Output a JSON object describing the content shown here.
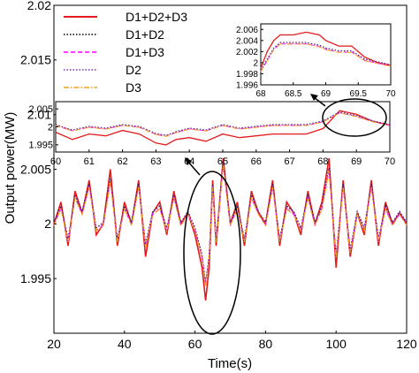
{
  "chart_data": [
    {
      "type": "line",
      "xlabel": "Time(s)",
      "ylabel": "Output power(MW)",
      "xlim": [
        20,
        120
      ],
      "ylim": [
        1.99,
        2.02
      ],
      "xticks": [
        "20",
        "40",
        "60",
        "80",
        "100",
        "120"
      ],
      "yticks": [
        "1.995",
        "2",
        "2.005",
        "2.01",
        "2.015",
        "2.02"
      ],
      "legend": "top-left",
      "series": [
        {
          "name": "D1+D2+D3",
          "color": "#e41a1c",
          "dash": "solid"
        },
        {
          "name": "D1+D2",
          "color": "#000000",
          "dash": "dotted"
        },
        {
          "name": "D1+D3",
          "color": "#ff00ff",
          "dash": "dashed"
        },
        {
          "name": "D2",
          "color": "#7b2fbe",
          "dash": "dotted"
        },
        {
          "name": "D3",
          "color": "#f0a020",
          "dash": "dashdot"
        }
      ],
      "x": [
        20,
        22,
        24,
        26,
        28,
        30,
        32,
        34,
        36,
        38,
        40,
        42,
        44,
        46,
        48,
        50,
        52,
        54,
        56,
        58,
        60,
        62,
        63,
        64,
        65,
        66,
        68,
        70,
        72,
        74,
        76,
        78,
        80,
        82,
        84,
        86,
        88,
        90,
        92,
        94,
        96,
        98,
        100,
        102,
        104,
        106,
        108,
        110,
        112,
        114,
        116,
        118,
        120
      ],
      "values_red": [
        2.0,
        2.002,
        1.998,
        2.003,
        2.001,
        2.004,
        1.999,
        2.0,
        2.005,
        1.998,
        2.002,
        2.0,
        2.004,
        1.997,
        2.001,
        2.002,
        1.999,
        2.003,
        2.0,
        2.001,
        1.999,
        1.996,
        1.993,
        1.996,
        2.004,
        1.998,
        2.006,
        2.0,
        2.002,
        1.998,
        2.003,
        2.001,
        2.0,
        2.004,
        1.998,
        2.002,
        2.001,
        1.999,
        2.003,
        2.0,
        2.002,
        2.006,
        1.996,
        2.004,
        1.997,
        2.001,
        1.999,
        2.004,
        1.998,
        2.002,
        2.0,
        2.001,
        2.0
      ],
      "values_others": [
        2.0,
        2.0015,
        1.9985,
        2.0025,
        2.001,
        2.0035,
        1.9995,
        2.0,
        2.004,
        1.9985,
        2.0015,
        2.0,
        2.0035,
        1.998,
        2.001,
        2.0015,
        1.9995,
        2.0025,
        2.0,
        2.001,
        1.9995,
        1.997,
        1.9945,
        1.997,
        2.0035,
        1.9985,
        2.0055,
        2.0,
        2.0015,
        1.9985,
        2.0025,
        2.001,
        2.0,
        2.0035,
        1.9985,
        2.0015,
        2.001,
        1.9995,
        2.0025,
        2.0,
        2.0015,
        2.005,
        1.997,
        2.0035,
        1.9975,
        2.001,
        1.9995,
        2.0035,
        1.9985,
        2.0015,
        2.0,
        2.001,
        2.0
      ]
    },
    {
      "type": "line",
      "xlim": [
        60,
        70
      ],
      "ylim": [
        1.993,
        2.007
      ],
      "xticks": [
        "60",
        "61",
        "62",
        "63",
        "64",
        "65",
        "66",
        "67",
        "68",
        "69",
        "70"
      ],
      "yticks": [
        "1.995",
        "2",
        "2.005"
      ],
      "x": [
        60,
        60.5,
        61,
        61.5,
        62,
        62.5,
        63,
        63.3,
        63.6,
        64,
        64.5,
        65,
        65.5,
        66,
        66.5,
        67,
        67.5,
        68,
        68.5,
        69,
        69.5,
        70
      ],
      "values_red": [
        1.9985,
        1.9965,
        1.998,
        1.9975,
        1.999,
        1.998,
        1.9955,
        1.995,
        1.9965,
        1.997,
        1.996,
        1.998,
        1.997,
        1.9975,
        1.998,
        1.998,
        1.998,
        1.9995,
        2.0045,
        2.0035,
        2.0015,
        2.0005
      ],
      "values_others": [
        2.0005,
        1.999,
        2.0,
        1.9995,
        2.0005,
        2.0,
        1.998,
        1.9975,
        1.9985,
        1.9995,
        1.999,
        2.0005,
        1.9995,
        2.0,
        2.0005,
        2.0005,
        2.0005,
        2.0015,
        2.004,
        2.003,
        2.0015,
        2.0005
      ]
    },
    {
      "type": "line",
      "xlim": [
        68,
        70
      ],
      "ylim": [
        1.996,
        2.007
      ],
      "xticks": [
        "68",
        "68.5",
        "69",
        "69.5",
        "70"
      ],
      "yticks": [
        "1.996",
        "1.998",
        "2",
        "2.002",
        "2.004",
        "2.006"
      ],
      "x": [
        68,
        68.1,
        68.2,
        68.3,
        68.5,
        68.7,
        68.9,
        69.0,
        69.2,
        69.4,
        69.6,
        69.8,
        70
      ],
      "values_red": [
        1.999,
        2.002,
        2.004,
        2.005,
        2.005,
        2.0055,
        2.005,
        2.004,
        2.003,
        2.003,
        2.001,
        2.0,
        1.9995
      ],
      "values_others": [
        1.9985,
        2.0005,
        2.0025,
        2.0035,
        2.0035,
        2.0035,
        2.003,
        2.0025,
        2.002,
        2.002,
        2.0005,
        2.0,
        1.9995
      ]
    }
  ]
}
